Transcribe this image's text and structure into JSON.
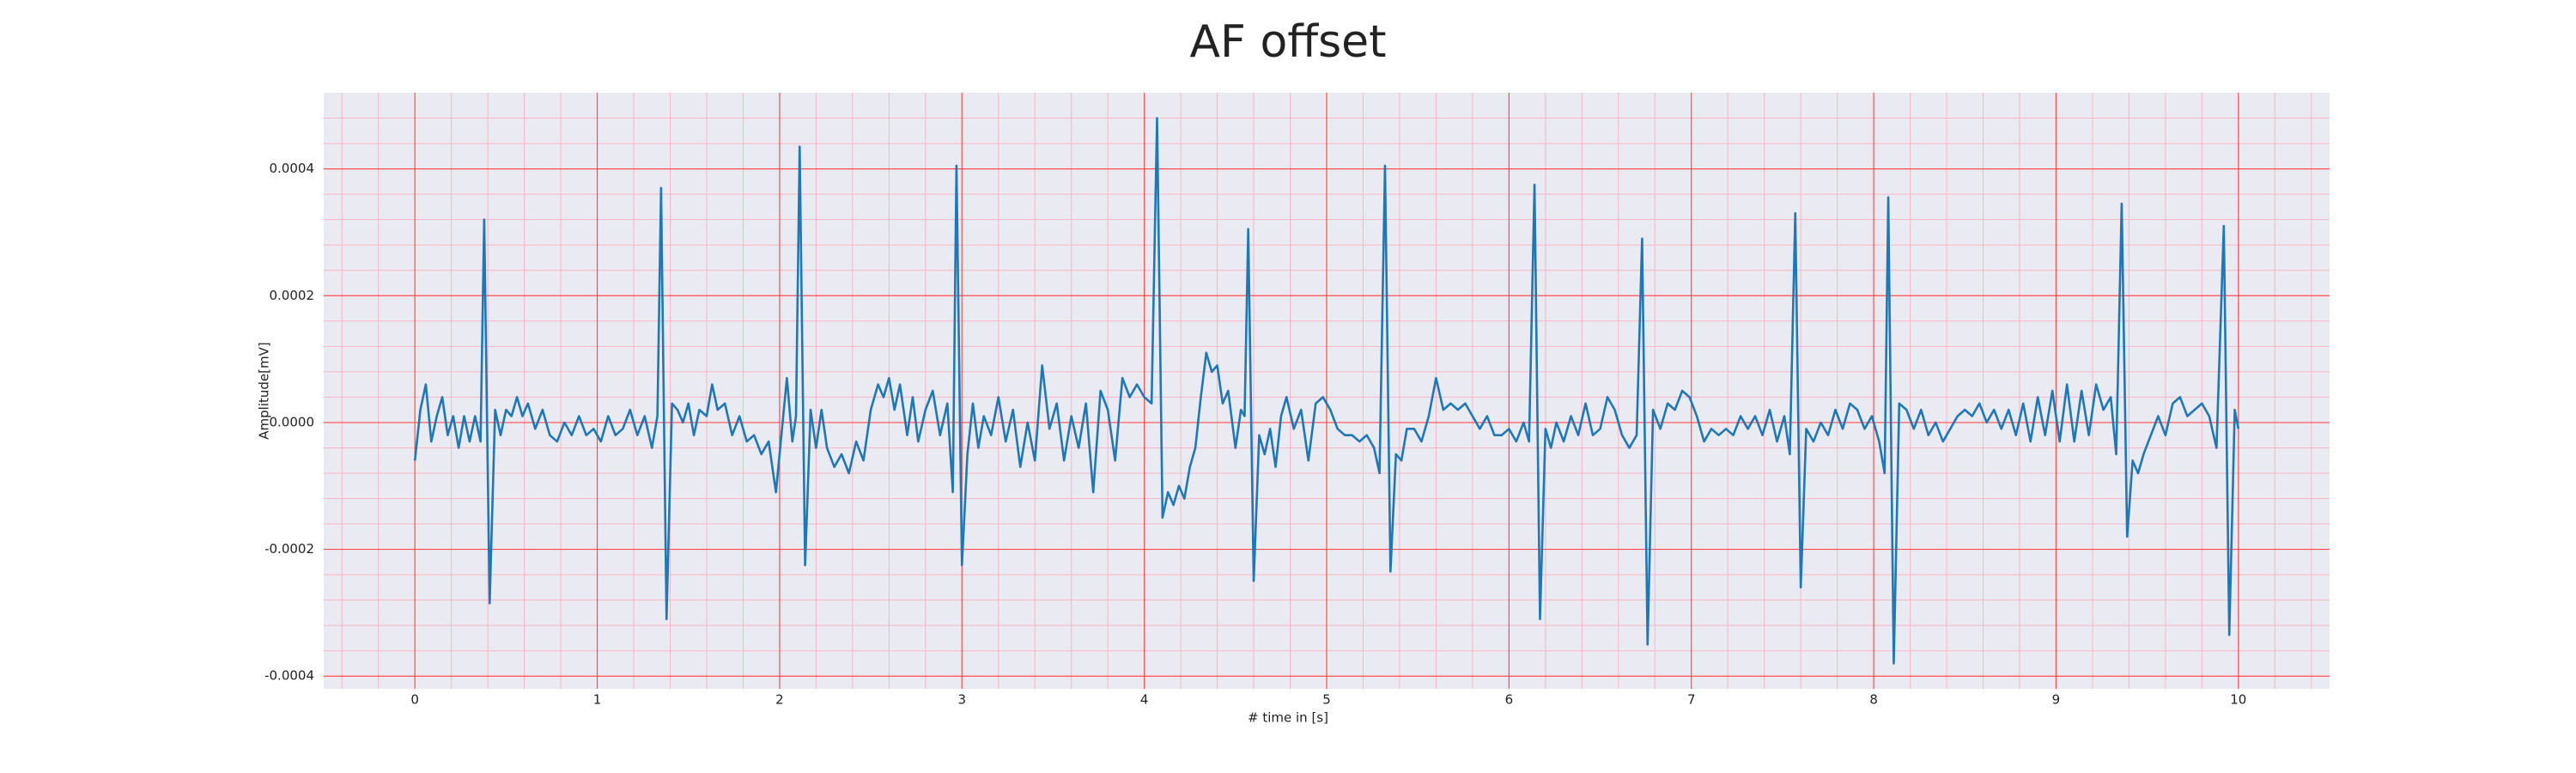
{
  "chart_data": {
    "type": "line",
    "title": "AF offset",
    "xlabel": "# time in [s]",
    "ylabel": "Amplitude[mV]",
    "x": [
      0,
      0.03,
      0.06,
      0.09,
      0.12,
      0.15,
      0.18,
      0.21,
      0.24,
      0.27,
      0.3,
      0.33,
      0.36,
      0.38,
      0.41,
      0.44,
      0.47,
      0.5,
      0.53,
      0.56,
      0.59,
      0.62,
      0.66,
      0.7,
      0.74,
      0.78,
      0.82,
      0.86,
      0.9,
      0.94,
      0.98,
      1.02,
      1.06,
      1.1,
      1.14,
      1.18,
      1.22,
      1.26,
      1.3,
      1.33,
      1.35,
      1.38,
      1.41,
      1.44,
      1.47,
      1.5,
      1.53,
      1.56,
      1.6,
      1.63,
      1.66,
      1.7,
      1.74,
      1.78,
      1.82,
      1.86,
      1.9,
      1.94,
      1.98,
      2.01,
      2.04,
      2.07,
      2.09,
      2.11,
      2.14,
      2.17,
      2.2,
      2.23,
      2.26,
      2.3,
      2.34,
      2.38,
      2.42,
      2.46,
      2.5,
      2.54,
      2.57,
      2.6,
      2.63,
      2.66,
      2.7,
      2.73,
      2.76,
      2.8,
      2.84,
      2.88,
      2.92,
      2.95,
      2.97,
      3.0,
      3.03,
      3.06,
      3.09,
      3.12,
      3.16,
      3.2,
      3.24,
      3.28,
      3.32,
      3.36,
      3.4,
      3.44,
      3.48,
      3.52,
      3.56,
      3.6,
      3.64,
      3.68,
      3.72,
      3.76,
      3.8,
      3.84,
      3.88,
      3.92,
      3.96,
      4.0,
      4.04,
      4.07,
      4.1,
      4.13,
      4.16,
      4.19,
      4.22,
      4.25,
      4.28,
      4.31,
      4.34,
      4.37,
      4.4,
      4.43,
      4.46,
      4.5,
      4.53,
      4.55,
      4.57,
      4.6,
      4.63,
      4.66,
      4.69,
      4.72,
      4.75,
      4.78,
      4.82,
      4.86,
      4.9,
      4.94,
      4.98,
      5.02,
      5.06,
      5.1,
      5.14,
      5.18,
      5.22,
      5.26,
      5.29,
      5.32,
      5.35,
      5.38,
      5.41,
      5.44,
      5.48,
      5.52,
      5.56,
      5.6,
      5.64,
      5.68,
      5.72,
      5.76,
      5.8,
      5.84,
      5.88,
      5.92,
      5.96,
      6.0,
      6.04,
      6.08,
      6.11,
      6.14,
      6.17,
      6.2,
      6.23,
      6.26,
      6.3,
      6.34,
      6.38,
      6.42,
      6.46,
      6.5,
      6.54,
      6.58,
      6.62,
      6.66,
      6.7,
      6.73,
      6.76,
      6.79,
      6.83,
      6.87,
      6.91,
      6.95,
      6.99,
      7.03,
      7.07,
      7.11,
      7.15,
      7.19,
      7.23,
      7.27,
      7.31,
      7.35,
      7.39,
      7.43,
      7.47,
      7.51,
      7.54,
      7.57,
      7.6,
      7.63,
      7.67,
      7.71,
      7.75,
      7.79,
      7.83,
      7.87,
      7.91,
      7.95,
      7.99,
      8.03,
      8.06,
      8.08,
      8.11,
      8.14,
      8.18,
      8.22,
      8.26,
      8.3,
      8.34,
      8.38,
      8.42,
      8.46,
      8.5,
      8.54,
      8.58,
      8.62,
      8.66,
      8.7,
      8.74,
      8.78,
      8.82,
      8.86,
      8.9,
      8.94,
      8.98,
      9.02,
      9.06,
      9.1,
      9.14,
      9.18,
      9.22,
      9.26,
      9.3,
      9.33,
      9.36,
      9.39,
      9.42,
      9.45,
      9.48,
      9.52,
      9.56,
      9.6,
      9.64,
      9.68,
      9.72,
      9.76,
      9.8,
      9.84,
      9.88,
      9.92,
      9.95,
      9.98,
      10.0
    ],
    "series": [
      {
        "color": "#1f77b4",
        "values": [
          -6e-05,
          2e-05,
          6e-05,
          -3e-05,
          1e-05,
          4e-05,
          -2e-05,
          1e-05,
          -4e-05,
          1e-05,
          -3e-05,
          1e-05,
          -3e-05,
          0.00032,
          -0.000285,
          2e-05,
          -2e-05,
          2e-05,
          1e-05,
          4e-05,
          1e-05,
          3e-05,
          -1e-05,
          2e-05,
          -2e-05,
          -3e-05,
          0,
          -2e-05,
          1e-05,
          -2e-05,
          -1e-05,
          -3e-05,
          1e-05,
          -2e-05,
          -1e-05,
          2e-05,
          -2e-05,
          1e-05,
          -4e-05,
          1e-05,
          0.00037,
          -0.00031,
          3e-05,
          2e-05,
          0,
          3e-05,
          -2e-05,
          2e-05,
          1e-05,
          6e-05,
          2e-05,
          3e-05,
          -2e-05,
          1e-05,
          -3e-05,
          -2e-05,
          -5e-05,
          -3e-05,
          -0.00011,
          -2e-05,
          7e-05,
          -3e-05,
          1e-05,
          0.000435,
          -0.000225,
          2e-05,
          -4e-05,
          2e-05,
          -4e-05,
          -7e-05,
          -5e-05,
          -8e-05,
          -3e-05,
          -6e-05,
          2e-05,
          6e-05,
          4e-05,
          7e-05,
          2e-05,
          6e-05,
          -2e-05,
          4e-05,
          -3e-05,
          2e-05,
          5e-05,
          -2e-05,
          3e-05,
          -0.00011,
          0.000405,
          -0.000225,
          -5e-05,
          3e-05,
          -4e-05,
          1e-05,
          -2e-05,
          4e-05,
          -3e-05,
          2e-05,
          -7e-05,
          0,
          -6e-05,
          9e-05,
          -1e-05,
          3e-05,
          -6e-05,
          1e-05,
          -4e-05,
          3e-05,
          -0.00011,
          5e-05,
          2e-05,
          -6e-05,
          7e-05,
          4e-05,
          6e-05,
          4e-05,
          3e-05,
          0.00048,
          -0.00015,
          -0.00011,
          -0.00013,
          -0.0001,
          -0.00012,
          -7e-05,
          -4e-05,
          4e-05,
          0.00011,
          8e-05,
          9e-05,
          3e-05,
          5e-05,
          -4e-05,
          2e-05,
          1e-05,
          0.000305,
          -0.00025,
          -2e-05,
          -5e-05,
          -1e-05,
          -7e-05,
          1e-05,
          4e-05,
          -1e-05,
          2e-05,
          -6e-05,
          3e-05,
          4e-05,
          2e-05,
          -1e-05,
          -2e-05,
          -2e-05,
          -3e-05,
          -2e-05,
          -4e-05,
          -8e-05,
          0.000405,
          -0.000235,
          -5e-05,
          -6e-05,
          -1e-05,
          -1e-05,
          -3e-05,
          1e-05,
          7e-05,
          2e-05,
          3e-05,
          2e-05,
          3e-05,
          1e-05,
          -1e-05,
          1e-05,
          -2e-05,
          -2e-05,
          -1e-05,
          -3e-05,
          0,
          -3e-05,
          0.000375,
          -0.00031,
          -1e-05,
          -4e-05,
          0,
          -3e-05,
          1e-05,
          -2e-05,
          3e-05,
          -2e-05,
          -1e-05,
          4e-05,
          2e-05,
          -2e-05,
          -4e-05,
          -2e-05,
          0.00029,
          -0.00035,
          2e-05,
          -1e-05,
          3e-05,
          2e-05,
          5e-05,
          4e-05,
          1e-05,
          -3e-05,
          -1e-05,
          -2e-05,
          -1e-05,
          -2e-05,
          1e-05,
          -1e-05,
          1e-05,
          -2e-05,
          2e-05,
          -3e-05,
          1e-05,
          -5e-05,
          0.00033,
          -0.00026,
          -1e-05,
          -3e-05,
          0,
          -2e-05,
          2e-05,
          -1e-05,
          3e-05,
          2e-05,
          -1e-05,
          1e-05,
          -3e-05,
          -8e-05,
          0.000355,
          -0.00038,
          3e-05,
          2e-05,
          -1e-05,
          2e-05,
          -2e-05,
          0,
          -3e-05,
          -1e-05,
          1e-05,
          2e-05,
          1e-05,
          3e-05,
          0,
          2e-05,
          -1e-05,
          2e-05,
          -2e-05,
          3e-05,
          -3e-05,
          4e-05,
          -2e-05,
          5e-05,
          -3e-05,
          6e-05,
          -3e-05,
          5e-05,
          -2e-05,
          6e-05,
          2e-05,
          4e-05,
          -5e-05,
          0.000345,
          -0.00018,
          -6e-05,
          -8e-05,
          -5e-05,
          -2e-05,
          1e-05,
          -2e-05,
          3e-05,
          4e-05,
          1e-05,
          2e-05,
          3e-05,
          1e-05,
          -4e-05,
          0.00031,
          -0.000335,
          2e-05,
          -1e-05
        ]
      }
    ],
    "xlim": [
      -0.5,
      10.5
    ],
    "xticks": [
      0,
      1,
      2,
      3,
      4,
      5,
      6,
      7,
      8,
      9,
      10
    ],
    "ylim": [
      -0.00042,
      0.00052
    ],
    "yticks": [
      -0.0004,
      -0.0002,
      {
        "value": 0,
        "label": "0.0000"
      },
      0.0002,
      0.0004
    ],
    "grid": true,
    "minor_grid": true
  }
}
